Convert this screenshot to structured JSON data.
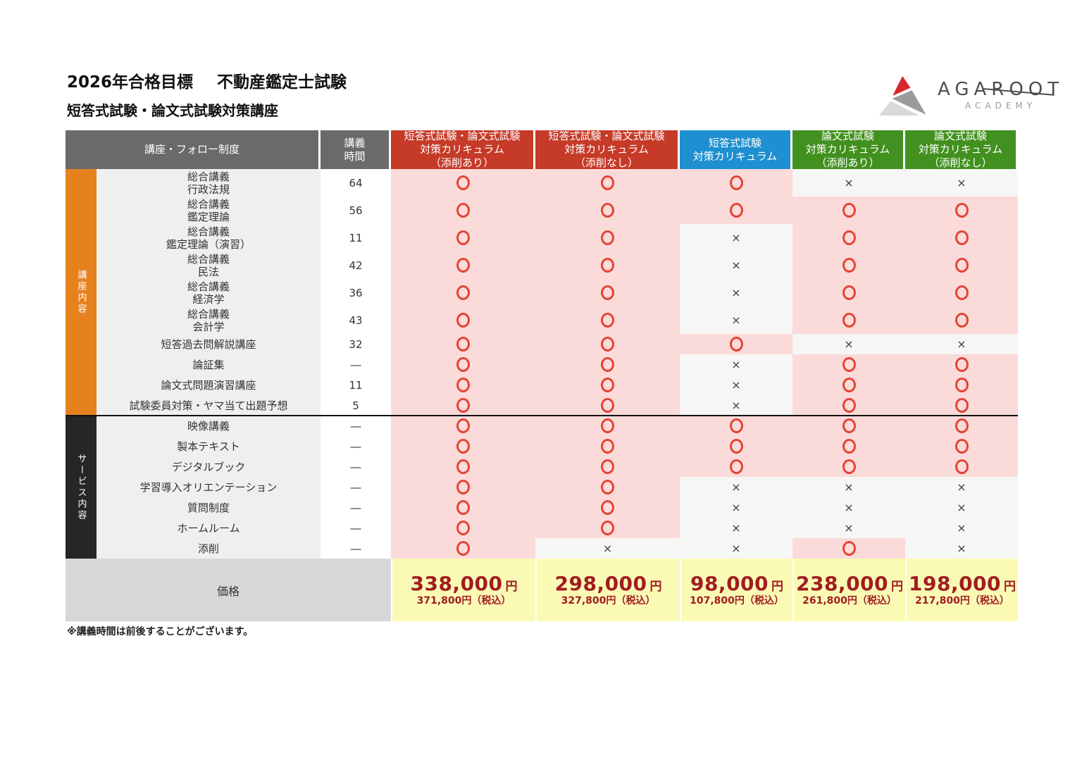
{
  "page": {
    "title_goal": "2026年合格目標",
    "title_exam": "不動産鑑定士試験",
    "subtitle": "短答式試験・論文式試験対策講座",
    "footnote": "※講義時間は前後することがございます。"
  },
  "logo": {
    "brand": "AGAROOT",
    "academy": "ACADEMY",
    "colors": {
      "red": "#d8262c",
      "gray": "#9b9b9b",
      "light_gray": "#d9d9d9"
    }
  },
  "table": {
    "header": {
      "course_col": "講座・フォロー制度",
      "hours_col": "講義\n時間",
      "plans": [
        {
          "label": "短答式試験・論文式試験\n対策カリキュラム\n（添削あり）",
          "color": "#c63a28"
        },
        {
          "label": "短答式試験・論文式試験\n対策カリキュラム\n（添削なし）",
          "color": "#c63a28"
        },
        {
          "label": "短答式試験\n対策カリキュラム",
          "color": "#1e8fd0"
        },
        {
          "label": "論文式試験\n対策カリキュラム\n（添削あり）",
          "color": "#42901f"
        },
        {
          "label": "論文式試験\n対策カリキュラム\n（添削なし）",
          "color": "#42901f"
        }
      ]
    },
    "sections": [
      {
        "name": "講座内容",
        "color": "#e5821e",
        "rows": [
          {
            "label": "総合講義\n行政法規",
            "hours": "64",
            "marks": [
              "o",
              "o",
              "o",
              "x",
              "x"
            ]
          },
          {
            "label": "総合講義\n鑑定理論",
            "hours": "56",
            "marks": [
              "o",
              "o",
              "o",
              "o",
              "o"
            ]
          },
          {
            "label": "総合講義\n鑑定理論（演習）",
            "hours": "11",
            "marks": [
              "o",
              "o",
              "x",
              "o",
              "o"
            ]
          },
          {
            "label": "総合講義\n民法",
            "hours": "42",
            "marks": [
              "o",
              "o",
              "x",
              "o",
              "o"
            ]
          },
          {
            "label": "総合講義\n経済学",
            "hours": "36",
            "marks": [
              "o",
              "o",
              "x",
              "o",
              "o"
            ]
          },
          {
            "label": "総合講義\n会計学",
            "hours": "43",
            "marks": [
              "o",
              "o",
              "x",
              "o",
              "o"
            ]
          },
          {
            "label": "短答過去問解説講座",
            "hours": "32",
            "marks": [
              "o",
              "o",
              "o",
              "x",
              "x"
            ]
          },
          {
            "label": "論証集",
            "hours": "―",
            "marks": [
              "o",
              "o",
              "x",
              "o",
              "o"
            ]
          },
          {
            "label": "論文式問題演習講座",
            "hours": "11",
            "marks": [
              "o",
              "o",
              "x",
              "o",
              "o"
            ]
          },
          {
            "label": "試験委員対策・ヤマ当て出題予想",
            "hours": "5",
            "marks": [
              "o",
              "o",
              "x",
              "o",
              "o"
            ]
          }
        ]
      },
      {
        "name": "サービス内容",
        "color": "#262626",
        "rows": [
          {
            "label": "映像講義",
            "hours": "―",
            "marks": [
              "o",
              "o",
              "o",
              "o",
              "o"
            ]
          },
          {
            "label": "製本テキスト",
            "hours": "―",
            "marks": [
              "o",
              "o",
              "o",
              "o",
              "o"
            ]
          },
          {
            "label": "デジタルブック",
            "hours": "―",
            "marks": [
              "o",
              "o",
              "o",
              "o",
              "o"
            ]
          },
          {
            "label": "学習導入オリエンテーション",
            "hours": "―",
            "marks": [
              "o",
              "o",
              "x",
              "x",
              "x"
            ]
          },
          {
            "label": "質問制度",
            "hours": "―",
            "marks": [
              "o",
              "o",
              "x",
              "x",
              "x"
            ]
          },
          {
            "label": "ホームルーム",
            "hours": "―",
            "marks": [
              "o",
              "o",
              "x",
              "x",
              "x"
            ]
          },
          {
            "label": "添削",
            "hours": "―",
            "marks": [
              "o",
              "x",
              "x",
              "o",
              "x"
            ]
          }
        ]
      }
    ],
    "price_row": {
      "label": "価格",
      "unit": "円",
      "prices": [
        {
          "amount": "338,000",
          "tax": "371,800円（税込）"
        },
        {
          "amount": "298,000",
          "tax": "327,800円（税込）"
        },
        {
          "amount": "98,000",
          "tax": "107,800円（税込）"
        },
        {
          "amount": "238,000",
          "tax": "261,800円（税込）"
        },
        {
          "amount": "198,000",
          "tax": "217,800円（税込）"
        }
      ]
    }
  }
}
